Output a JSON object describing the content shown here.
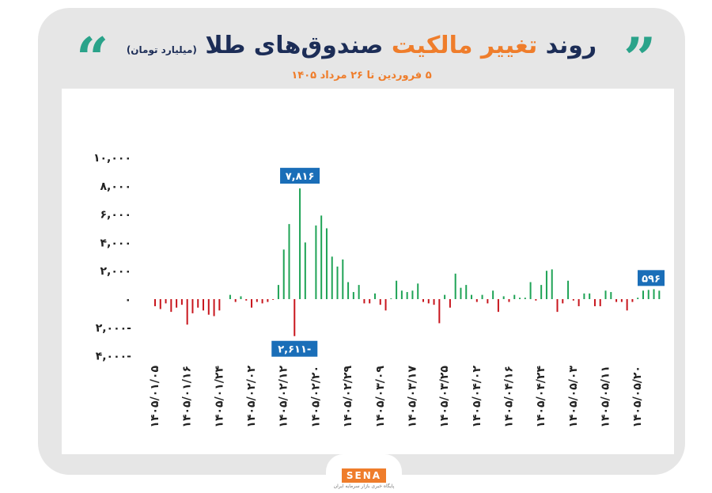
{
  "header": {
    "title_part1": "روند",
    "title_accent": "تغییر مالکیت",
    "title_part2": "صندوق‌های طلا",
    "title_unit": "(میلیارد تومان)",
    "subtitle": "۵ فروردین تا ۲۶ مرداد ۱۴۰۵",
    "quote_left": "“",
    "quote_right": "”"
  },
  "logo": {
    "text": "SENA",
    "tagline": "پایگاه خبری بازار سرمایه ایران"
  },
  "colors": {
    "positive": "#1fa356",
    "negative": "#c8161d",
    "callout": "#1a6eb8",
    "accent": "#ef7d2b",
    "navy": "#1c2d57",
    "quote": "#2aa38a"
  },
  "chart_data": {
    "type": "bar",
    "ylim": [
      -4000,
      10000
    ],
    "yticks": [
      10000,
      8000,
      6000,
      4000,
      2000,
      0,
      -2000,
      -4000
    ],
    "ytick_labels": [
      "۱۰,۰۰۰",
      "۸,۰۰۰",
      "۶,۰۰۰",
      "۴,۰۰۰",
      "۲,۰۰۰",
      "۰",
      "۲,۰۰۰-",
      "۴,۰۰۰-"
    ],
    "xtick_labels": [
      "۱۴۰۵/۰۱/۰۵",
      "۱۴۰۵/۰۱/۱۶",
      "۱۴۰۵/۰۱/۲۴",
      "۱۴۰۵/۰۲/۰۲",
      "۱۴۰۵/۰۲/۱۲",
      "۱۴۰۵/۰۲/۲۰",
      "۱۴۰۵/۰۲/۲۹",
      "۱۴۰۵/۰۳/۰۹",
      "۱۴۰۵/۰۳/۱۷",
      "۱۴۰۵/۰۳/۲۵",
      "۱۴۰۵/۰۴/۰۲",
      "۱۴۰۵/۰۴/۱۶",
      "۱۴۰۵/۰۴/۲۴",
      "۱۴۰۵/۰۵/۰۳",
      "۱۴۰۵/۰۵/۱۱",
      "۱۴۰۵/۰۵/۲۰"
    ],
    "xtick_positions": [
      0,
      6,
      12,
      18,
      24,
      30,
      36,
      42,
      48,
      54,
      60,
      66,
      72,
      78,
      84,
      90
    ],
    "values": [
      -500,
      -700,
      -300,
      -900,
      -600,
      -400,
      -1800,
      -1000,
      -600,
      -800,
      -1100,
      -1200,
      -800,
      0,
      300,
      -200,
      200,
      -100,
      -600,
      -200,
      -300,
      -200,
      -50,
      1000,
      3500,
      5300,
      -2611,
      7816,
      4000,
      0,
      5200,
      5900,
      5000,
      3000,
      2300,
      2800,
      1200,
      500,
      1000,
      -300,
      -300,
      400,
      -400,
      -800,
      50,
      1300,
      600,
      500,
      600,
      1100,
      -200,
      -300,
      -400,
      -1700,
      300,
      -600,
      1800,
      800,
      1000,
      300,
      -200,
      300,
      -300,
      600,
      -900,
      200,
      -200,
      300,
      100,
      100,
      1200,
      -100,
      1000,
      2000,
      2100,
      -900,
      -300,
      1300,
      -100,
      -500,
      400,
      400,
      -500,
      -500,
      600,
      500,
      -200,
      -200,
      -800,
      -200,
      100,
      600,
      650,
      700,
      596
    ],
    "callouts": [
      {
        "index": 27,
        "label": "۷,۸۱۶",
        "position": "above"
      },
      {
        "index": 26,
        "label": "۲,۶۱۱-",
        "position": "below"
      },
      {
        "index": 94,
        "label": "۵۹۶",
        "position": "above"
      }
    ]
  }
}
